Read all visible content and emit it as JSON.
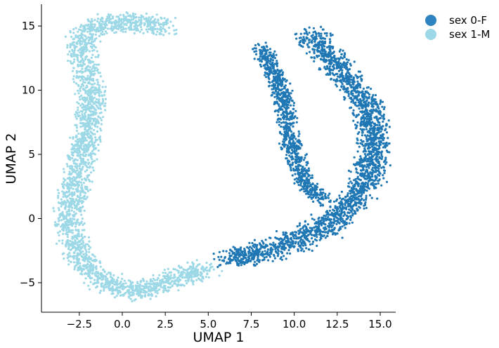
{
  "chart_data": {
    "type": "scatter",
    "title": "",
    "xlabel": "UMAP 1",
    "ylabel": "UMAP 2",
    "xlim": [
      -4.7,
      15.9
    ],
    "ylim": [
      -7.3,
      16.7
    ],
    "xticks": [
      -2.5,
      0.0,
      2.5,
      5.0,
      7.5,
      10.0,
      12.5,
      15.0
    ],
    "xtick_labels": [
      "−2.5",
      "0.0",
      "2.5",
      "5.0",
      "7.5",
      "10.0",
      "12.5",
      "15.0"
    ],
    "yticks": [
      -5,
      0,
      5,
      10,
      15
    ],
    "ytick_labels": [
      "−5",
      "0",
      "5",
      "10",
      "15"
    ],
    "grid": false,
    "legend_position": "top-right, outside plot",
    "series": [
      {
        "name": "sex 0-F",
        "color": "#1f77b4",
        "legend_color": "#2e84c0",
        "points_note": "dense point cloud forming a crescent; points sampled along spine",
        "spine": [
          [
            6.0,
            -3.0
          ],
          [
            7.5,
            -2.8
          ],
          [
            9.0,
            -2.3
          ],
          [
            10.5,
            -1.5
          ],
          [
            12.0,
            -0.5
          ],
          [
            13.2,
            1.0
          ],
          [
            14.2,
            3.0
          ],
          [
            14.7,
            5.2
          ],
          [
            14.6,
            7.2
          ],
          [
            14.0,
            9.2
          ],
          [
            13.0,
            11.0
          ],
          [
            12.0,
            12.6
          ],
          [
            10.8,
            14.3
          ]
        ],
        "inner_arm": [
          [
            8.0,
            13.3
          ],
          [
            8.6,
            12.0
          ],
          [
            9.2,
            10.0
          ],
          [
            9.6,
            8.0
          ],
          [
            9.8,
            6.0
          ],
          [
            10.2,
            4.0
          ],
          [
            10.8,
            2.5
          ],
          [
            11.8,
            1.3
          ]
        ]
      },
      {
        "name": "sex 1-M",
        "color": "#9dd8e6",
        "legend_color": "#9dd8e6",
        "points_note": "dense point cloud forming a C shape; points sampled along spine",
        "spine": [
          [
            5.0,
            -4.0
          ],
          [
            3.5,
            -4.4
          ],
          [
            2.0,
            -5.3
          ],
          [
            0.5,
            -5.7
          ],
          [
            -1.0,
            -5.0
          ],
          [
            -2.2,
            -3.5
          ],
          [
            -3.0,
            -1.5
          ],
          [
            -3.1,
            0.5
          ],
          [
            -2.8,
            2.5
          ],
          [
            -2.3,
            5.0
          ],
          [
            -2.0,
            7.0
          ],
          [
            -1.8,
            9.0
          ],
          [
            -2.0,
            11.0
          ],
          [
            -2.3,
            12.8
          ],
          [
            -2.4,
            14.0
          ],
          [
            -1.2,
            15.1
          ],
          [
            0.6,
            15.3
          ],
          [
            1.8,
            15.2
          ],
          [
            2.5,
            14.8
          ]
        ]
      }
    ]
  }
}
